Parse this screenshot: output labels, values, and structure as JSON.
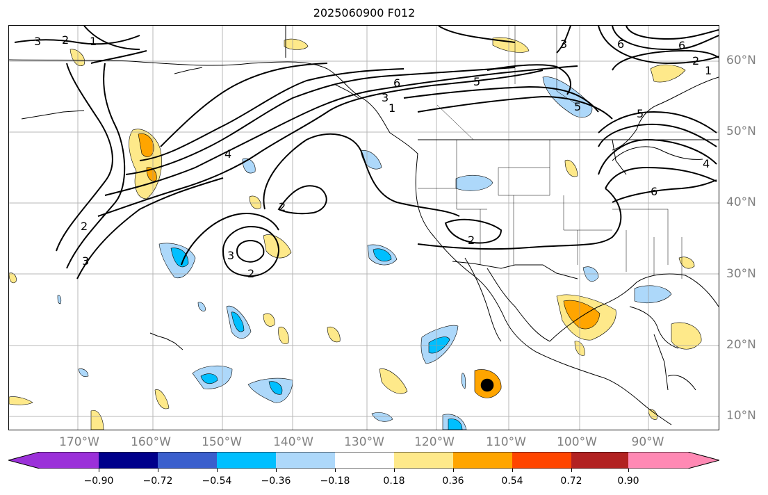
{
  "title": "2025060900 F012",
  "lon_labels": [
    "170°W",
    "160°W",
    "150°W",
    "140°W",
    "130°W",
    "120°W",
    "110°W",
    "100°W",
    "90°W"
  ],
  "lat_labels": [
    "60°N",
    "50°N",
    "40°N",
    "30°N",
    "20°N",
    "10°N"
  ],
  "colorbar": {
    "ticks": [
      "−0.90",
      "−0.72",
      "−0.54",
      "−0.36",
      "−0.18",
      "0.18",
      "0.36",
      "0.54",
      "0.72",
      "0.90"
    ],
    "colors": [
      "#9b30d9",
      "#00008b",
      "#3a5fcd",
      "#00bfff",
      "#add8fa",
      "#ffffff",
      "#fee98a",
      "#ffa500",
      "#ff4500",
      "#b22222",
      "#ff89b4"
    ]
  },
  "contour_labels": [
    "3",
    "2",
    "1",
    "6",
    "5",
    "3",
    "1",
    "4",
    "2",
    "3",
    "2",
    "2",
    "3",
    "6",
    "6",
    "5",
    "2",
    "1",
    "3",
    "2",
    "6",
    "5",
    "4"
  ]
}
